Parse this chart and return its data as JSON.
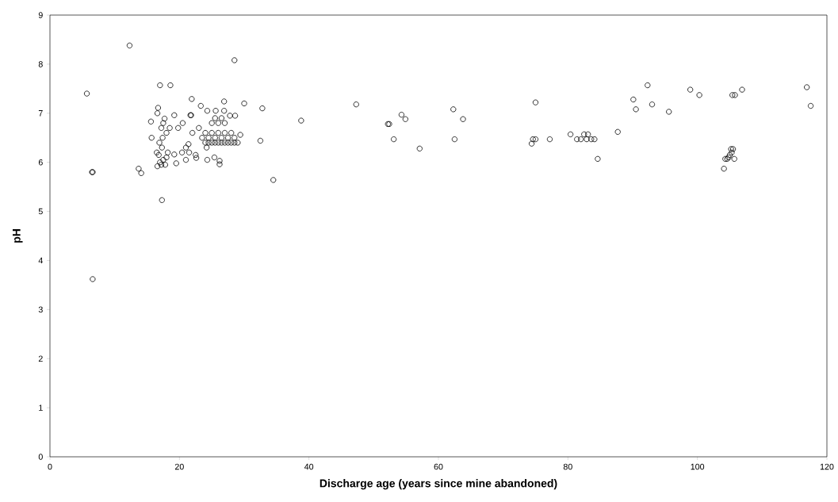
{
  "chart_data": {
    "type": "scatter",
    "xlabel": "Discharge age (years since mine abandoned)",
    "ylabel": "pH",
    "xlim": [
      0,
      120
    ],
    "ylim": [
      0,
      9
    ],
    "xticks": [
      0,
      20,
      40,
      60,
      80,
      100,
      120
    ],
    "yticks": [
      0,
      1,
      2,
      3,
      4,
      5,
      6,
      7,
      8,
      9
    ],
    "grid": false,
    "marker": "circle",
    "series": [
      {
        "color": "#000000",
        "x": [
          5.7,
          6.5,
          6.6,
          6.6,
          12.3,
          13.7,
          14.1,
          17.3,
          28.5,
          34.5,
          38.8,
          32.8,
          32.5,
          30.0,
          17.0,
          18.6,
          21.9,
          26.9,
          23.3,
          24.3,
          16.7,
          16.6,
          15.6,
          17.7,
          19.2,
          21.8,
          21.7,
          25.6,
          26.9,
          27.8,
          28.6,
          15.7,
          29.4,
          16.5,
          16.8,
          17.0,
          17.2,
          17.5,
          17.8,
          18.0,
          16.6,
          18.2,
          17.3,
          17.4,
          17.2,
          17.5,
          18.5,
          18.0,
          16.9,
          19.2,
          21.4,
          19.5,
          21.0,
          22.6,
          24.3,
          20.4,
          21.5,
          22.5,
          26.2,
          26.2,
          25.4,
          24.0,
          24.5,
          25.0,
          25.5,
          26.0,
          26.5,
          27.0,
          27.5,
          28.0,
          28.5,
          29.0,
          23.5,
          24.5,
          25.5,
          26.5,
          27.5,
          28.5,
          24.0,
          25.0,
          26.0,
          27.0,
          28.0,
          25.0,
          26.0,
          27.0,
          25.5,
          26.5,
          23.0,
          24.2,
          22.0,
          20.5,
          19.8,
          21.0,
          47.3,
          52.2,
          52.4,
          53.1,
          54.3,
          54.9,
          57.1,
          62.3,
          62.5,
          63.8,
          74.4,
          74.6,
          75.0,
          75.0,
          77.2,
          80.4,
          81.4,
          82.0,
          82.5,
          82.9,
          83.1,
          83.6,
          84.1,
          84.6,
          87.7,
          90.1,
          90.5,
          92.3,
          93.0,
          95.6,
          98.9,
          100.3,
          104.1,
          104.3,
          104.6,
          104.8,
          105.0,
          105.2,
          105.3,
          105.5,
          105.7,
          105.4,
          105.8,
          106.9,
          116.9,
          117.5
        ],
        "values": [
          7.4,
          5.8,
          5.8,
          3.62,
          8.38,
          5.87,
          5.78,
          5.23,
          8.08,
          5.64,
          6.85,
          7.1,
          6.44,
          7.2,
          7.57,
          7.57,
          7.29,
          7.24,
          7.15,
          7.05,
          7.11,
          7.0,
          6.83,
          6.89,
          6.96,
          6.96,
          6.96,
          7.05,
          7.05,
          6.95,
          6.95,
          6.5,
          6.56,
          6.2,
          6.15,
          6.0,
          5.95,
          6.05,
          5.95,
          6.1,
          5.92,
          6.2,
          6.3,
          6.5,
          6.7,
          6.8,
          6.7,
          6.6,
          6.4,
          6.16,
          6.37,
          5.98,
          6.05,
          6.09,
          6.05,
          6.2,
          6.2,
          6.15,
          6.03,
          5.96,
          6.1,
          6.4,
          6.4,
          6.4,
          6.4,
          6.4,
          6.4,
          6.4,
          6.4,
          6.4,
          6.4,
          6.4,
          6.5,
          6.5,
          6.5,
          6.5,
          6.5,
          6.5,
          6.6,
          6.6,
          6.6,
          6.6,
          6.6,
          6.8,
          6.8,
          6.8,
          6.9,
          6.9,
          6.7,
          6.3,
          6.6,
          6.8,
          6.7,
          6.3,
          7.18,
          6.78,
          6.78,
          6.47,
          6.97,
          6.88,
          6.28,
          7.08,
          6.47,
          6.88,
          6.38,
          6.47,
          6.47,
          7.22,
          6.47,
          6.57,
          6.47,
          6.47,
          6.57,
          6.47,
          6.57,
          6.47,
          6.47,
          6.07,
          6.62,
          7.28,
          7.08,
          7.57,
          7.18,
          7.03,
          7.48,
          7.37,
          5.87,
          6.07,
          6.07,
          6.1,
          6.15,
          6.27,
          6.2,
          6.27,
          6.07,
          7.37,
          7.37,
          7.48,
          7.53,
          7.15
        ]
      }
    ]
  }
}
